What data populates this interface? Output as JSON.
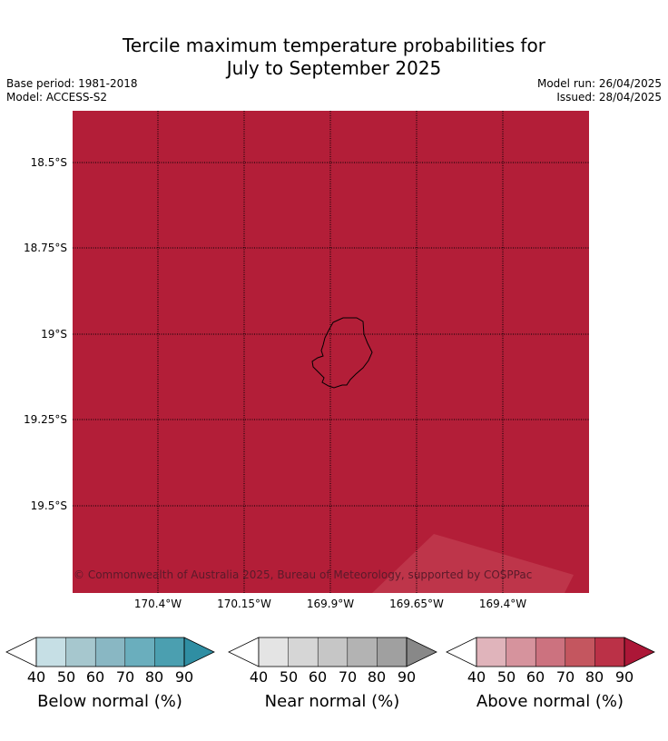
{
  "title": {
    "line1": "Tercile maximum temperature probabilities for",
    "line2": "July to September 2025"
  },
  "meta": {
    "base_period": "Base period: 1981-2018",
    "model": "Model: ACCESS-S2",
    "model_run": "Model run: 26/04/2025",
    "issued": "Issued: 28/04/2025"
  },
  "map": {
    "fill_color": "#b31e38",
    "lighter_patch_color": "#bf3a4e",
    "lat_labels": [
      "18.5°S",
      "18.75°S",
      "19°S",
      "19.25°S",
      "19.5°S"
    ],
    "lon_labels": [
      "170.4°W",
      "170.15°W",
      "169.9°W",
      "169.65°W",
      "169.4°W"
    ],
    "island": "Niue",
    "copyright": "© Commonwealth of Australia 2025, Bureau of Meteorology, supported by COSPPac"
  },
  "legend": {
    "ticks": [
      "40",
      "50",
      "60",
      "70",
      "80",
      "90"
    ],
    "colorbars": [
      {
        "label": "Below normal (%)",
        "colors": [
          "#ffffff",
          "#c6dfe5",
          "#a6c7ce",
          "#89b7c3",
          "#6aaebd",
          "#4b9fb0",
          "#2f8ea3"
        ]
      },
      {
        "label": "Near normal (%)",
        "colors": [
          "#ffffff",
          "#e4e4e4",
          "#d6d6d6",
          "#c6c6c6",
          "#b3b3b3",
          "#a0a0a0",
          "#888888"
        ]
      },
      {
        "label": "Above normal (%)",
        "colors": [
          "#ffffff",
          "#e0b4bb",
          "#d6939d",
          "#cc727f",
          "#c4565f",
          "#bb3147",
          "#ac1737"
        ]
      }
    ]
  }
}
